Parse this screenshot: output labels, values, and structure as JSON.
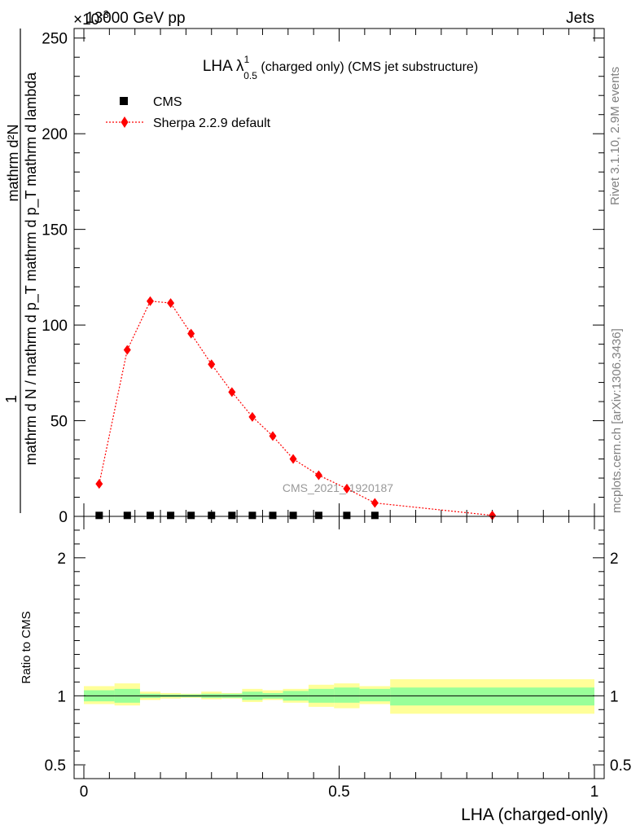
{
  "header": {
    "left_title": "13000 GeV pp",
    "right_title": "Jets",
    "exponent_label": "×10",
    "exponent_value": "-3"
  },
  "plot": {
    "title_main": "LHA λ",
    "title_sup": "1",
    "title_sub": "0.5",
    "title_rest": " (charged only) (CMS jet substructure)",
    "watermark": "CMS_2021_I1920187",
    "ylabel_numerator": "mathrm d²N",
    "ylabel_denominator": "mathrm d N / mathrm d p_T mathrm d p_T mathrm d lambda",
    "ylabel_prefix": "1",
    "ratio_ylabel": "Ratio to CMS",
    "xlabel": "LHA (charged-only)",
    "side_text_top": "Rivet 3.1.10,  2.9M events",
    "side_text_bottom": "mcplots.cern.ch [arXiv:1306.3436]"
  },
  "legend": {
    "cms": "CMS",
    "sherpa": "Sherpa 2.2.9 default"
  },
  "colors": {
    "sherpa": "#ff0000",
    "cms": "#000000",
    "band_inner": "#99ff99",
    "band_outer": "#ffff99",
    "watermark": "#999999"
  },
  "chart_data": {
    "type": "line",
    "x_range": [
      0,
      1
    ],
    "main_ylim": [
      0,
      255
    ],
    "main_yticks": [
      0,
      50,
      100,
      150,
      200,
      250
    ],
    "ratio_ylim": [
      0.4,
      2.3
    ],
    "ratio_yticks": [
      0.5,
      1,
      2
    ],
    "xticks": [
      0,
      0.5,
      1
    ],
    "xtick_labels": [
      "0",
      "0.5",
      "1"
    ],
    "series": [
      {
        "name": "Sherpa 2.2.9 default",
        "x": [
          0.03,
          0.085,
          0.13,
          0.17,
          0.21,
          0.25,
          0.29,
          0.33,
          0.37,
          0.41,
          0.46,
          0.515,
          0.57,
          0.8
        ],
        "y": [
          17,
          87,
          112.5,
          111.5,
          95.5,
          79.5,
          65,
          52,
          42,
          30,
          21.5,
          14.5,
          7,
          0.5
        ]
      },
      {
        "name": "CMS",
        "x": [
          0.03,
          0.085,
          0.13,
          0.17,
          0.21,
          0.25,
          0.29,
          0.33,
          0.37,
          0.41,
          0.46,
          0.515,
          0.57
        ],
        "y": [
          0.5,
          0.5,
          0.5,
          0.5,
          0.5,
          0.5,
          0.5,
          0.5,
          0.5,
          0.5,
          0.5,
          0.5,
          0.5
        ]
      }
    ],
    "ratio_bands": [
      {
        "x0": 0.0,
        "x1": 0.06,
        "inner": [
          0.96,
          1.04
        ],
        "outer": [
          0.94,
          1.07
        ]
      },
      {
        "x0": 0.06,
        "x1": 0.11,
        "inner": [
          0.95,
          1.05
        ],
        "outer": [
          0.93,
          1.09
        ]
      },
      {
        "x0": 0.11,
        "x1": 0.15,
        "inner": [
          0.985,
          1.015
        ],
        "outer": [
          0.97,
          1.03
        ]
      },
      {
        "x0": 0.15,
        "x1": 0.19,
        "inner": [
          0.99,
          1.01
        ],
        "outer": [
          0.98,
          1.02
        ]
      },
      {
        "x0": 0.19,
        "x1": 0.23,
        "inner": [
          0.99,
          1.01
        ],
        "outer": [
          0.985,
          1.015
        ]
      },
      {
        "x0": 0.23,
        "x1": 0.27,
        "inner": [
          0.985,
          1.015
        ],
        "outer": [
          0.975,
          1.03
        ]
      },
      {
        "x0": 0.27,
        "x1": 0.31,
        "inner": [
          0.985,
          1.015
        ],
        "outer": [
          0.98,
          1.02
        ]
      },
      {
        "x0": 0.31,
        "x1": 0.35,
        "inner": [
          0.97,
          1.03
        ],
        "outer": [
          0.955,
          1.05
        ]
      },
      {
        "x0": 0.35,
        "x1": 0.39,
        "inner": [
          0.98,
          1.02
        ],
        "outer": [
          0.97,
          1.04
        ]
      },
      {
        "x0": 0.39,
        "x1": 0.44,
        "inner": [
          0.965,
          1.035
        ],
        "outer": [
          0.95,
          1.05
        ]
      },
      {
        "x0": 0.44,
        "x1": 0.49,
        "inner": [
          0.95,
          1.05
        ],
        "outer": [
          0.92,
          1.08
        ]
      },
      {
        "x0": 0.49,
        "x1": 0.54,
        "inner": [
          0.95,
          1.06
        ],
        "outer": [
          0.91,
          1.09
        ]
      },
      {
        "x0": 0.54,
        "x1": 0.6,
        "inner": [
          0.96,
          1.05
        ],
        "outer": [
          0.94,
          1.07
        ]
      },
      {
        "x0": 0.6,
        "x1": 1.0,
        "inner": [
          0.93,
          1.06
        ],
        "outer": [
          0.87,
          1.12
        ]
      }
    ]
  }
}
